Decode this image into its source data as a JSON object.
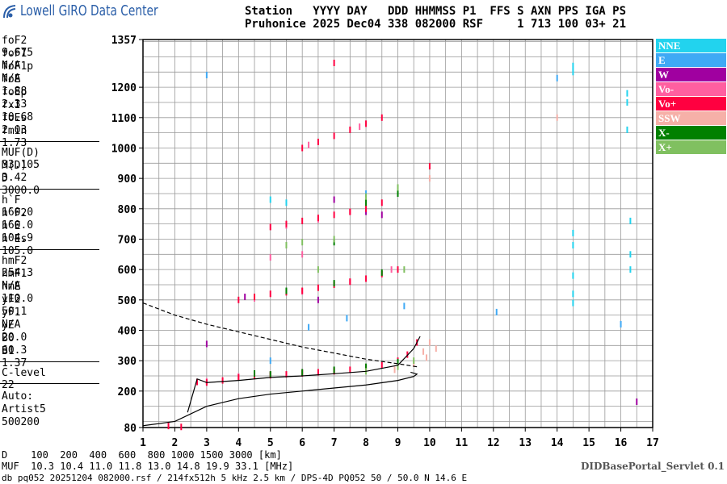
{
  "header": {
    "logo": "Lowell GIRO Data Center",
    "line1": "Station   YYYY DAY   DDD HHMMSS P1  FFS S AXN PPS IGA PS",
    "line2": "Pruhonice 2025 Dec04 338 082000 RSF     1 713 100 03+ 21"
  },
  "params": [
    [
      [
        "foF2",
        "9.675"
      ],
      [
        "foF1",
        "N/A"
      ],
      [
        "foF1p",
        "N/A"
      ],
      [
        "foE",
        "1.88"
      ],
      [
        "foEp",
        "2.33"
      ],
      [
        "fxI",
        "10.68"
      ],
      [
        "foEs",
        "2.03"
      ],
      [
        "fmin",
        "1.73"
      ]
    ],
    [
      [
        "MUF(D)",
        "33.105"
      ],
      [
        "M(D)",
        "3.42"
      ],
      [
        "D",
        "3000.0"
      ]
    ],
    [
      [
        "h`F",
        "160.0"
      ],
      [
        "h`F2",
        "160.0"
      ],
      [
        "h`E",
        "104.9"
      ],
      [
        "h`Es",
        "105.0"
      ]
    ],
    [
      [
        "hmF2",
        "254.3"
      ],
      [
        "hmF1",
        "N/A"
      ],
      [
        "hmE",
        "110.0"
      ],
      [
        "yF2",
        "50.1"
      ],
      [
        "yF1",
        "N/A"
      ],
      [
        "yE",
        "20.0"
      ],
      [
        "B0",
        "60.3"
      ],
      [
        "B1",
        "1.37"
      ]
    ],
    [
      [
        "C-level",
        "22"
      ]
    ]
  ],
  "auto": [
    "Auto:",
    "Artist5",
    "500200"
  ],
  "footer": {
    "d_row": "D    100  200  400  600  800 1000 1500 3000 [km]",
    "muf_row": "MUF  10.3 10.4 11.0 11.8 13.0 14.8 19.9 33.1 [MHz]",
    "file_info": "db pq052 20251204 082000.rsf / 214fx512h 5 kHz 2.5 km / DPS-4D PQ052 50 / 50.0 N 14.6 E",
    "servlet": "DIDBasePortal_Servlet 0.1"
  },
  "chart_data": {
    "type": "scatter",
    "xlim": [
      1,
      17
    ],
    "ylim": [
      80,
      1357
    ],
    "xticks": [
      1,
      2,
      3,
      4,
      5,
      6,
      7,
      8,
      9,
      10,
      11,
      12,
      13,
      14,
      15,
      16,
      17
    ],
    "yticks": [
      80,
      200,
      300,
      400,
      500,
      600,
      700,
      800,
      900,
      1000,
      1100,
      1200,
      1357
    ],
    "xgrid": [
      1.5,
      2,
      2.5,
      3,
      3.5,
      4,
      4.5,
      5,
      5.5,
      6,
      6.5,
      7,
      7.5,
      8,
      8.5,
      9,
      9.5,
      10,
      10.5,
      11,
      11.5,
      12,
      12.5,
      13,
      13.5,
      14,
      14.5,
      15,
      15.5,
      16,
      16.5
    ],
    "ygrid": [
      100,
      150,
      200,
      250,
      300,
      350,
      400,
      450,
      500,
      550,
      600,
      650,
      700,
      750,
      800,
      850,
      900,
      950,
      1000,
      1050,
      1100,
      1150,
      1200,
      1250,
      1300,
      1350
    ],
    "grid": true,
    "series": [
      {
        "name": "NNE",
        "color": "#22d3ee",
        "x": [
          14.5,
          14.5,
          14.5,
          14.5,
          14.5,
          14.5,
          14.5,
          16.2,
          16.2,
          16.2,
          16.3,
          16.3,
          16.3,
          5,
          5.5
        ],
        "values": [
          1250,
          1270,
          720,
          680,
          580,
          520,
          490,
          1180,
          1150,
          1060,
          760,
          650,
          600,
          830,
          820
        ]
      },
      {
        "name": "E",
        "color": "#3fa9f5",
        "x": [
          14,
          8,
          5,
          3,
          16,
          9.2,
          12.1,
          6.2,
          7.4
        ],
        "values": [
          1230,
          850,
          300,
          1240,
          420,
          480,
          460,
          410,
          440
        ]
      },
      {
        "name": "W",
        "color": "#a000a0",
        "x": [
          7,
          8,
          3,
          6.5,
          8.5,
          16.5,
          4.2
        ],
        "values": [
          830,
          790,
          355,
          500,
          780,
          165,
          510
        ]
      },
      {
        "name": "Vo-",
        "color": "#ff5fa0",
        "x": [
          3,
          4,
          5,
          6,
          7,
          8,
          9,
          4.5,
          6,
          7.5,
          8.8,
          5.5,
          6.5,
          7.5,
          6.2,
          7.8,
          5,
          6
        ],
        "values": [
          232,
          248,
          255,
          262,
          268,
          278,
          298,
          505,
          528,
          560,
          600,
          745,
          765,
          790,
          1010,
          1070,
          640,
          650
        ]
      },
      {
        "name": "Vo+",
        "color": "#ff0040",
        "x": [
          2.7,
          3,
          3.5,
          4,
          4.5,
          5,
          5.5,
          6,
          6.5,
          7,
          7.5,
          8,
          8.5,
          9,
          9.3,
          9.6,
          4,
          4.5,
          5,
          5.5,
          6,
          6.5,
          7,
          7.5,
          8,
          8.5,
          9,
          5,
          5.5,
          6,
          6.5,
          7,
          7.5,
          8,
          8.5,
          6,
          6.5,
          7,
          7.5,
          8,
          8.5,
          7,
          1.8,
          2.2,
          10
        ],
        "values": [
          230,
          228,
          235,
          245,
          250,
          252,
          255,
          258,
          262,
          265,
          270,
          275,
          285,
          300,
          320,
          360,
          500,
          510,
          520,
          525,
          530,
          540,
          550,
          560,
          570,
          585,
          600,
          740,
          750,
          760,
          770,
          780,
          790,
          800,
          820,
          1000,
          1020,
          1040,
          1060,
          1080,
          1100,
          1280,
          85,
          82,
          940
        ]
      },
      {
        "name": "SSW",
        "color": "#f6b0a8",
        "x": [
          9.8,
          10,
          10.2,
          9.5,
          8.9,
          10,
          14,
          9.9
        ],
        "values": [
          330,
          360,
          340,
          290,
          270,
          900,
          1100,
          310
        ]
      },
      {
        "name": "X-",
        "color": "#008000",
        "x": [
          5,
          6,
          7,
          8,
          9,
          5.5,
          7,
          8.5,
          7,
          8,
          9,
          4.5
        ],
        "values": [
          255,
          262,
          270,
          280,
          295,
          530,
          555,
          590,
          690,
          820,
          850,
          258
        ]
      },
      {
        "name": "X+",
        "color": "#80c060",
        "x": [
          8,
          9,
          9.5,
          6,
          7,
          8,
          9,
          9.2,
          5.5,
          6.5
        ],
        "values": [
          265,
          280,
          300,
          690,
          700,
          840,
          870,
          600,
          680,
          600
        ]
      }
    ],
    "lines": [
      {
        "color": "#000000",
        "dash": false,
        "x": [
          1,
          2,
          3,
          4,
          5,
          6,
          7,
          8,
          9,
          9.5,
          9.6,
          9.4
        ],
        "values": [
          86,
          100,
          150,
          175,
          190,
          200,
          210,
          220,
          235,
          248,
          256,
          262
        ]
      },
      {
        "color": "#000000",
        "dash": false,
        "x": [
          2.4,
          2.7,
          3,
          4,
          5,
          6,
          7,
          8,
          9,
          9.5,
          9.7
        ],
        "values": [
          130,
          240,
          228,
          235,
          245,
          250,
          257,
          265,
          285,
          340,
          380
        ]
      },
      {
        "color": "#000000",
        "dash": true,
        "x": [
          1,
          2,
          3,
          4,
          5,
          6,
          7,
          8,
          9,
          9.6
        ],
        "values": [
          490,
          450,
          420,
          395,
          370,
          345,
          325,
          305,
          290,
          280
        ]
      }
    ]
  }
}
